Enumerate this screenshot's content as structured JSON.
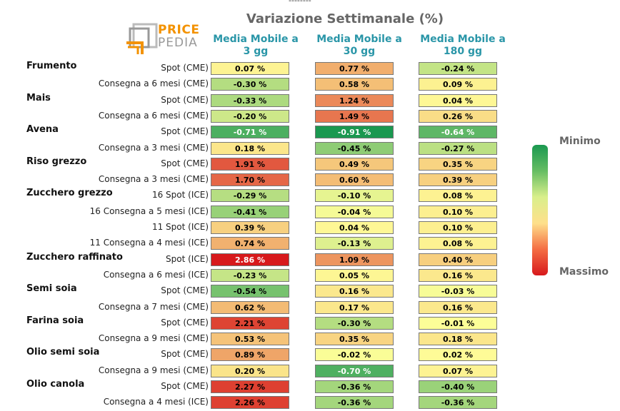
{
  "top_marker": "--------",
  "chart_data": {
    "type": "heatmap",
    "title": "Variazione Settimanale (%)",
    "columns": [
      "Media Mobile a 3 gg",
      "Media Mobile a 30 gg",
      "Media Mobile a 180 gg"
    ],
    "rows": [
      {
        "product": "Frumento",
        "contract": "Spot (CME)",
        "values": [
          0.07,
          0.77,
          -0.24
        ]
      },
      {
        "product": "",
        "contract": "Consegna a 6 mesi (CME)",
        "values": [
          -0.3,
          0.58,
          0.09
        ]
      },
      {
        "product": "Mais",
        "contract": "Spot (CME)",
        "values": [
          -0.33,
          1.24,
          0.04
        ]
      },
      {
        "product": "",
        "contract": "Consegna a 6 mesi (CME)",
        "values": [
          -0.2,
          1.49,
          0.26
        ]
      },
      {
        "product": "Avena",
        "contract": "Spot (CME)",
        "values": [
          -0.71,
          -0.91,
          -0.64
        ]
      },
      {
        "product": "",
        "contract": "Consegna a 3 mesi (CME)",
        "values": [
          0.18,
          -0.45,
          -0.27
        ]
      },
      {
        "product": "Riso grezzo",
        "contract": "Spot (CME)",
        "values": [
          1.91,
          0.49,
          0.35
        ]
      },
      {
        "product": "",
        "contract": "Consegna a 3 mesi (CME)",
        "values": [
          1.7,
          0.6,
          0.39
        ]
      },
      {
        "product": "Zucchero grezzo",
        "contract": "16 Spot (ICE)",
        "values": [
          -0.29,
          -0.1,
          0.08
        ]
      },
      {
        "product": "",
        "contract": "16 Consegna a 5 mesi (ICE)",
        "values": [
          -0.41,
          -0.04,
          0.1
        ]
      },
      {
        "product": "",
        "contract": "11 Spot (ICE)",
        "values": [
          0.39,
          0.04,
          0.1
        ]
      },
      {
        "product": "",
        "contract": "11 Consegna a 4 mesi (ICE)",
        "values": [
          0.74,
          -0.13,
          0.08
        ]
      },
      {
        "product": "Zucchero raffinato",
        "contract": "Spot (ICE)",
        "values": [
          2.86,
          1.09,
          0.4
        ]
      },
      {
        "product": "",
        "contract": "Consegna a 6 mesi (ICE)",
        "values": [
          -0.23,
          0.05,
          0.16
        ]
      },
      {
        "product": "Semi soia",
        "contract": "Spot (CME)",
        "values": [
          -0.54,
          0.16,
          -0.03
        ]
      },
      {
        "product": "",
        "contract": "Consegna a 7 mesi (CME)",
        "values": [
          0.62,
          0.17,
          0.16
        ]
      },
      {
        "product": "Farina soia",
        "contract": "Spot (CME)",
        "values": [
          2.21,
          -0.3,
          -0.01
        ]
      },
      {
        "product": "",
        "contract": "Consegna a 9 mesi (CME)",
        "values": [
          0.53,
          0.35,
          0.18
        ]
      },
      {
        "product": "Olio semi soia",
        "contract": "Spot (CME)",
        "values": [
          0.89,
          -0.02,
          0.02
        ]
      },
      {
        "product": "",
        "contract": "Consegna a 9 mesi (CME)",
        "values": [
          0.2,
          -0.7,
          0.07
        ]
      },
      {
        "product": "Olio canola",
        "contract": "Spot (CME)",
        "values": [
          2.27,
          -0.36,
          -0.4
        ]
      },
      {
        "product": "",
        "contract": "Consegna a 4 mesi (ICE)",
        "values": [
          2.26,
          -0.36,
          -0.36
        ]
      }
    ],
    "value_suffix": " %",
    "color_scale": {
      "min_value": -0.91,
      "max_value": 2.86,
      "min_color": "#1a9850",
      "mid_color": "#ffff99",
      "max_color": "#d7191c"
    },
    "legend": {
      "min_label": "Minimo",
      "max_label": "Massimo",
      "placement": "right"
    }
  },
  "logo": {
    "line1": "PRICE",
    "line2": "PEDIA"
  }
}
